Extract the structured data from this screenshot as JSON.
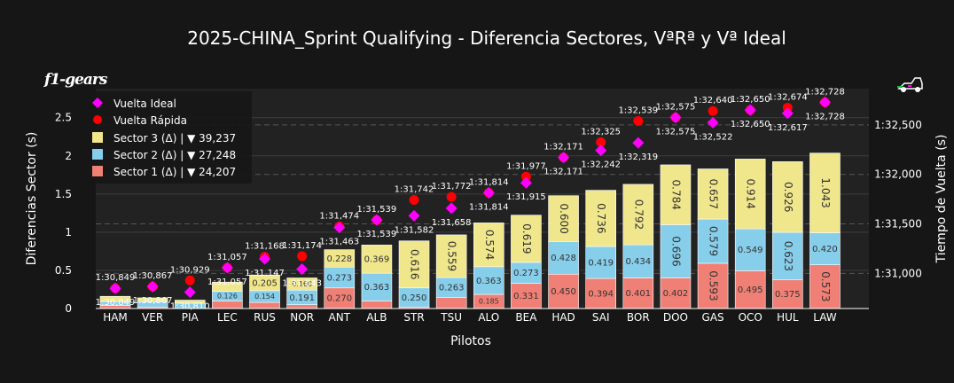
{
  "colors": {
    "background": "#161616",
    "plot_background": "#222222",
    "sector1": "#f08075",
    "sector2": "#87ceeb",
    "sector3": "#f0e68c",
    "ideal_marker": "#ff00ff",
    "fast_marker": "#ff0000",
    "text": "#ffffff"
  },
  "logo_text": "f1-gears",
  "chart_data": {
    "type": "bar",
    "stacked": true,
    "title": "2025-CHINA_Sprint Qualifying - Diferencia Sectores, VªRª y Vª Ideal",
    "xlabel": "Pilotos",
    "ylabel": "Diferencias Sector (s)",
    "y2label": "Tiempo de Vuelta (s)",
    "ylim": [
      0,
      2.88
    ],
    "yticks": [
      0,
      0.5,
      1,
      1.5,
      2,
      2.5
    ],
    "ytick_labels": [
      "0",
      "0.5",
      "1",
      "1.5",
      "2",
      "2.5"
    ],
    "y2lim_seconds": [
      90.645,
      92.866
    ],
    "y2ticks_seconds": [
      91,
      91.5,
      92,
      92.5
    ],
    "y2tick_labels": [
      "1:31,000",
      "1:31,500",
      "1:32,000",
      "1:32,500"
    ],
    "categories": [
      "HAM",
      "VER",
      "PIA",
      "LEC",
      "RUS",
      "NOR",
      "ANT",
      "ALB",
      "STR",
      "TSU",
      "ALO",
      "BEA",
      "HAD",
      "SAI",
      "BOR",
      "DOO",
      "GAS",
      "OCO",
      "HUL",
      "LAW"
    ],
    "series": [
      {
        "name": "Sector 1 (Δ) | ▼ 24,207",
        "key": "sector1",
        "values": [
          0.04,
          0.02,
          0.0,
          0.1,
          0.08,
          0.05,
          0.27,
          0.1,
          0.02,
          0.143,
          0.185,
          0.331,
          0.45,
          0.394,
          0.401,
          0.402,
          0.593,
          0.495,
          0.375,
          0.573
        ],
        "labels": [
          "",
          "",
          "",
          "",
          "",
          "",
          "0.270",
          "",
          "",
          "",
          "0.185",
          "0.331",
          "0.450",
          "0.394",
          "0.401",
          "0.402",
          "0.593",
          "0.495",
          "0.375",
          "0.573"
        ]
      },
      {
        "name": "Sector 2 (Δ) | ▼ 27,248",
        "key": "sector2",
        "values": [
          0.05,
          0.07,
          0.07,
          0.126,
          0.154,
          0.191,
          0.273,
          0.363,
          0.25,
          0.263,
          0.363,
          0.273,
          0.428,
          0.419,
          0.434,
          0.696,
          0.579,
          0.549,
          0.623,
          0.42
        ],
        "labels": [
          "",
          "",
          "",
          "0.126",
          "0.154",
          "0.191",
          "0.273",
          "0.363",
          "0.250",
          "0.263",
          "0.363",
          "0.273",
          "0.428",
          "0.419",
          "0.434",
          "0.696",
          "0.579",
          "0.549",
          "0.623",
          "0.420"
        ]
      },
      {
        "name": "Sector 3 (Δ) | ▼ 39,237",
        "key": "sector3",
        "values": [
          0.07,
          0.05,
          0.04,
          0.12,
          0.205,
          0.16,
          0.228,
          0.369,
          0.616,
          0.559,
          0.574,
          0.619,
          0.6,
          0.736,
          0.792,
          0.784,
          0.657,
          0.914,
          0.926,
          1.043
        ],
        "labels": [
          "",
          "",
          "",
          "",
          "0.205",
          "0.160",
          "0.228",
          "0.369",
          "0.616",
          "0.559",
          "0.574",
          "0.619",
          "0.600",
          "0.736",
          "0.792",
          "0.784",
          "0.657",
          "0.914",
          "0.926",
          "1.043"
        ]
      }
    ],
    "ideal_lap": {
      "name": "Vuelta Ideal",
      "seconds": [
        90.849,
        90.867,
        90.81,
        91.057,
        91.147,
        91.043,
        91.463,
        91.539,
        91.582,
        91.658,
        91.814,
        91.915,
        92.171,
        92.242,
        92.319,
        92.575,
        92.522,
        92.65,
        92.617,
        92.728
      ],
      "labels": [
        "1:30,849",
        "1:30,867",
        "1:30,810",
        "1:31,057",
        "1:31,147",
        "1:31,043",
        "1:31,463",
        "1:31,539",
        "1:31,582",
        "1:31,658",
        "1:31,814",
        "1:31,915",
        "1:32,171",
        "1:32,242",
        "1:32,319",
        "1:32,575",
        "1:32,522",
        "1:32,650",
        "1:32,617",
        "1:32,728"
      ]
    },
    "fast_lap": {
      "name": "Vuelta Rápida",
      "seconds": [
        90.849,
        90.867,
        90.929,
        91.057,
        91.168,
        91.174,
        91.474,
        91.539,
        91.742,
        91.772,
        91.814,
        91.977,
        92.171,
        92.325,
        92.539,
        92.575,
        92.64,
        92.65,
        92.674,
        92.728
      ],
      "labels": [
        "1:30,849",
        "1:30,867",
        "1:30,929",
        "1:31,057",
        "1:31,168",
        "1:31,174",
        "1:31,474",
        "1:31,539",
        "1:31,742",
        "1:31,772",
        "1:31,814",
        "1:31,977",
        "1:32,171",
        "1:32,325",
        "1:32,539",
        "1:32,575",
        "1:32,640",
        "1:32,650",
        "1:32,674",
        "1:32,728"
      ]
    },
    "legend": {
      "position": "top-left",
      "items": [
        "Vuelta Ideal",
        "Vuelta Rápida",
        "Sector 3 (Δ) | ▼ 39,237",
        "Sector 2 (Δ) | ▼ 27,248",
        "Sector 1 (Δ) | ▼ 24,207"
      ]
    }
  }
}
